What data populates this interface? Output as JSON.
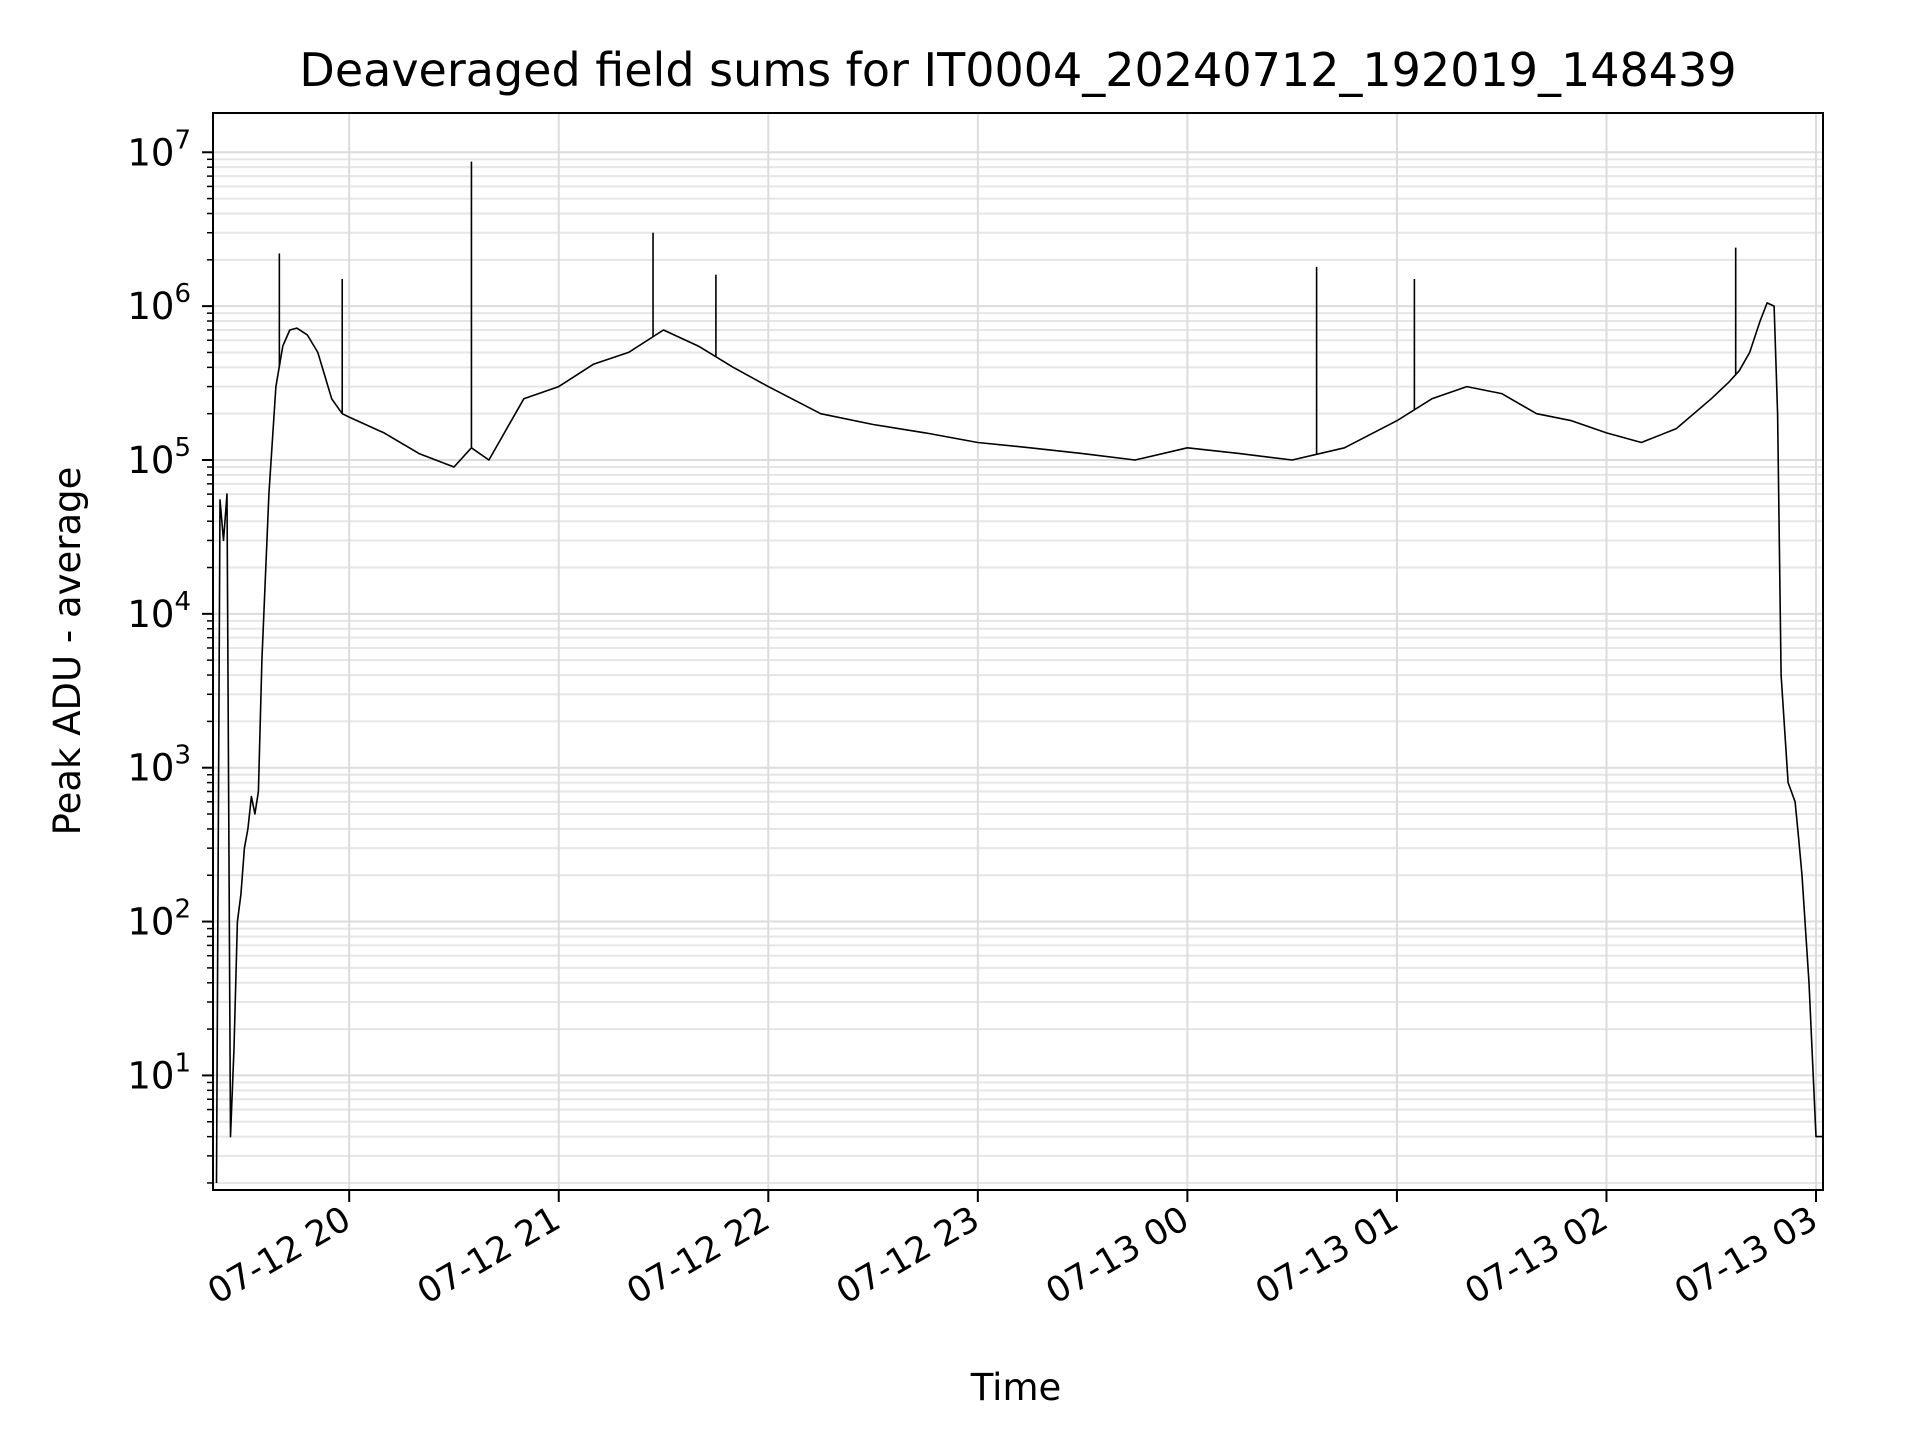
{
  "chart_data": {
    "type": "line",
    "title": "Deaveraged field sums for IT0004_20240712_192019_148439",
    "xlabel": "Time",
    "ylabel": "Peak ADU - average",
    "yscale": "log",
    "xlim": [
      "2024-07-12T19:21",
      "2024-07-13T03:02"
    ],
    "ylim": [
      1.8,
      18000000
    ],
    "grid": true,
    "line_color": "#000000",
    "x_ticks": [
      {
        "time": "2024-07-12T20:00",
        "label": "07-12 20"
      },
      {
        "time": "2024-07-12T21:00",
        "label": "07-12 21"
      },
      {
        "time": "2024-07-12T22:00",
        "label": "07-12 22"
      },
      {
        "time": "2024-07-12T23:00",
        "label": "07-12 23"
      },
      {
        "time": "2024-07-13T00:00",
        "label": "07-13 00"
      },
      {
        "time": "2024-07-13T01:00",
        "label": "07-13 01"
      },
      {
        "time": "2024-07-13T02:00",
        "label": "07-13 02"
      },
      {
        "time": "2024-07-13T03:00",
        "label": "07-13 03"
      }
    ],
    "y_ticks": [
      {
        "value": 10,
        "base": "10",
        "exp": "1"
      },
      {
        "value": 100,
        "base": "10",
        "exp": "2"
      },
      {
        "value": 1000,
        "base": "10",
        "exp": "3"
      },
      {
        "value": 10000,
        "base": "10",
        "exp": "4"
      },
      {
        "value": 100000,
        "base": "10",
        "exp": "5"
      },
      {
        "value": 1000000,
        "base": "10",
        "exp": "6"
      },
      {
        "value": 10000000,
        "base": "10",
        "exp": "7"
      }
    ],
    "series": [
      {
        "x": [
          "2024-07-12T19:22",
          "2024-07-12T19:23",
          "2024-07-12T19:24",
          "2024-07-12T19:25",
          "2024-07-12T19:26",
          "2024-07-12T19:27",
          "2024-07-12T19:28",
          "2024-07-12T19:29",
          "2024-07-12T19:30",
          "2024-07-12T19:31",
          "2024-07-12T19:32",
          "2024-07-12T19:33",
          "2024-07-12T19:34",
          "2024-07-12T19:35",
          "2024-07-12T19:37",
          "2024-07-12T19:39",
          "2024-07-12T19:41",
          "2024-07-12T19:43",
          "2024-07-12T19:45",
          "2024-07-12T19:48",
          "2024-07-12T19:51",
          "2024-07-12T19:55",
          "2024-07-12T19:58",
          "2024-07-12T20:00",
          "2024-07-12T20:10",
          "2024-07-12T20:20",
          "2024-07-12T20:30",
          "2024-07-12T20:35",
          "2024-07-12T20:40",
          "2024-07-12T20:50",
          "2024-07-12T21:00",
          "2024-07-12T21:10",
          "2024-07-12T21:20",
          "2024-07-12T21:30",
          "2024-07-12T21:40",
          "2024-07-12T21:50",
          "2024-07-12T22:00",
          "2024-07-12T22:15",
          "2024-07-12T22:30",
          "2024-07-12T22:45",
          "2024-07-12T23:00",
          "2024-07-12T23:15",
          "2024-07-12T23:30",
          "2024-07-12T23:45",
          "2024-07-13T00:00",
          "2024-07-13T00:15",
          "2024-07-13T00:30",
          "2024-07-13T00:45",
          "2024-07-13T01:00",
          "2024-07-13T01:10",
          "2024-07-13T01:20",
          "2024-07-13T01:30",
          "2024-07-13T01:40",
          "2024-07-13T01:50",
          "2024-07-13T02:00",
          "2024-07-13T02:10",
          "2024-07-13T02:20",
          "2024-07-13T02:30",
          "2024-07-13T02:35",
          "2024-07-13T02:38",
          "2024-07-13T02:41",
          "2024-07-13T02:44",
          "2024-07-13T02:46",
          "2024-07-13T02:48",
          "2024-07-13T02:49",
          "2024-07-13T02:50",
          "2024-07-13T02:52",
          "2024-07-13T02:54",
          "2024-07-13T02:55",
          "2024-07-13T02:56",
          "2024-07-13T02:58",
          "2024-07-13T03:00",
          "2024-07-13T03:02"
        ],
        "y": [
          2,
          55000,
          30000,
          60000,
          4,
          15,
          100,
          150,
          300,
          400,
          650,
          500,
          700,
          5000,
          60000,
          300000,
          550000,
          700000,
          720000,
          650000,
          500000,
          250000,
          200000,
          190000,
          150000,
          110000,
          90000,
          120000,
          100000,
          250000,
          300000,
          420000,
          500000,
          700000,
          550000,
          400000,
          300000,
          200000,
          170000,
          150000,
          130000,
          120000,
          110000,
          100000,
          120000,
          110000,
          100000,
          120000,
          180000,
          250000,
          300000,
          270000,
          200000,
          180000,
          150000,
          130000,
          160000,
          250000,
          320000,
          380000,
          500000,
          800000,
          1050000,
          1000000,
          200000,
          4000,
          800,
          600,
          350,
          200,
          40,
          4,
          4
        ]
      }
    ],
    "spikes": [
      {
        "x": "2024-07-12T19:40",
        "y": 2200000
      },
      {
        "x": "2024-07-12T19:58",
        "y": 1500000
      },
      {
        "x": "2024-07-12T20:35",
        "y": 8700000
      },
      {
        "x": "2024-07-12T21:27",
        "y": 3000000
      },
      {
        "x": "2024-07-12T21:45",
        "y": 1600000
      },
      {
        "x": "2024-07-13T00:37",
        "y": 1800000
      },
      {
        "x": "2024-07-13T01:05",
        "y": 1500000
      },
      {
        "x": "2024-07-13T02:37",
        "y": 2400000
      }
    ]
  }
}
